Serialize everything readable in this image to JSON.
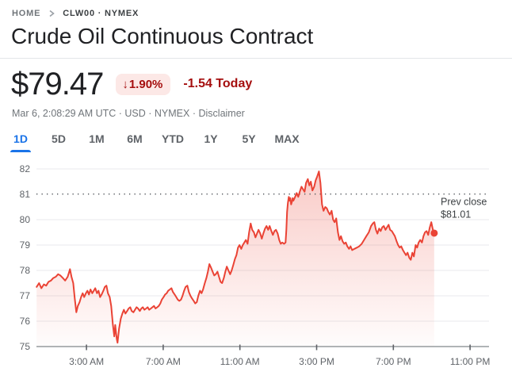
{
  "breadcrumb": {
    "home": "HOME",
    "symbol": "CLW00 · NYMEX"
  },
  "title": "Crude Oil Continuous Contract",
  "quote": {
    "price": "$79.47",
    "change_arrow": "↓",
    "change_percent": "1.90%",
    "change_amount": "-1.54 Today",
    "meta_text": "Mar 6, 2:08:29 AM UTC · USD · NYMEX ·",
    "disclaimer": "Disclaimer"
  },
  "tabs": [
    {
      "label": "1D",
      "active": true
    },
    {
      "label": "5D",
      "active": false
    },
    {
      "label": "1M",
      "active": false
    },
    {
      "label": "6M",
      "active": false
    },
    {
      "label": "YTD",
      "active": false
    },
    {
      "label": "1Y",
      "active": false
    },
    {
      "label": "5Y",
      "active": false
    },
    {
      "label": "MAX",
      "active": false
    }
  ],
  "colors": {
    "series_red": "#ea4335",
    "down_text_red": "#a50e0e",
    "badge_bg": "#fce8e6",
    "tab_active_blue": "#1a73e8",
    "axis_text": "#5f6368",
    "grid_line": "#e8eaed",
    "axis_line": "#80868b"
  },
  "chart_data": {
    "type": "area",
    "title": "Crude Oil Continuous Contract intraday price",
    "xlabel": "",
    "ylabel": "",
    "x_unit": "hour_of_day",
    "xlim": [
      0,
      24
    ],
    "ylim": [
      75,
      82
    ],
    "grid": true,
    "y_ticks": [
      82,
      81,
      80,
      79,
      78,
      77,
      76,
      75
    ],
    "x_ticks": [
      {
        "h": 3,
        "label": "3:00 AM"
      },
      {
        "h": 7,
        "label": "7:00 AM"
      },
      {
        "h": 11,
        "label": "11:00 AM"
      },
      {
        "h": 15,
        "label": "3:00 PM"
      },
      {
        "h": 19,
        "label": "7:00 PM"
      },
      {
        "h": 23,
        "label": "11:00 PM"
      }
    ],
    "prev_close": {
      "value": 81.01,
      "label_line1": "Prev close",
      "label_line2": "$81.01"
    },
    "last_point": {
      "h": 21.13,
      "price": 79.47
    },
    "series": [
      {
        "name": "CLW00",
        "color": "#ea4335",
        "points": [
          [
            0.4,
            77.35
          ],
          [
            0.53,
            77.5
          ],
          [
            0.65,
            77.3
          ],
          [
            0.78,
            77.45
          ],
          [
            0.9,
            77.4
          ],
          [
            1.02,
            77.55
          ],
          [
            1.15,
            77.6
          ],
          [
            1.27,
            77.7
          ],
          [
            1.4,
            77.75
          ],
          [
            1.52,
            77.85
          ],
          [
            1.64,
            77.8
          ],
          [
            1.77,
            77.7
          ],
          [
            1.89,
            77.6
          ],
          [
            2.02,
            77.75
          ],
          [
            2.14,
            78.05
          ],
          [
            2.22,
            77.75
          ],
          [
            2.31,
            77.5
          ],
          [
            2.39,
            76.9
          ],
          [
            2.47,
            76.35
          ],
          [
            2.55,
            76.6
          ],
          [
            2.64,
            76.75
          ],
          [
            2.72,
            76.95
          ],
          [
            2.8,
            77.1
          ],
          [
            2.88,
            76.95
          ],
          [
            2.97,
            77.1
          ],
          [
            3.05,
            77.2
          ],
          [
            3.13,
            77.05
          ],
          [
            3.21,
            77.25
          ],
          [
            3.3,
            77.1
          ],
          [
            3.38,
            77.2
          ],
          [
            3.46,
            77.3
          ],
          [
            3.55,
            77.1
          ],
          [
            3.63,
            77.2
          ],
          [
            3.71,
            76.95
          ],
          [
            3.79,
            77.05
          ],
          [
            3.88,
            77.2
          ],
          [
            3.96,
            77.35
          ],
          [
            4.04,
            77.4
          ],
          [
            4.12,
            77.1
          ],
          [
            4.21,
            76.95
          ],
          [
            4.29,
            76.6
          ],
          [
            4.37,
            75.9
          ],
          [
            4.45,
            75.4
          ],
          [
            4.5,
            75.85
          ],
          [
            4.54,
            75.55
          ],
          [
            4.58,
            75.3
          ],
          [
            4.62,
            75.15
          ],
          [
            4.7,
            75.7
          ],
          [
            4.79,
            76.1
          ],
          [
            4.87,
            76.3
          ],
          [
            4.95,
            76.45
          ],
          [
            5.03,
            76.3
          ],
          [
            5.12,
            76.4
          ],
          [
            5.2,
            76.5
          ],
          [
            5.28,
            76.55
          ],
          [
            5.36,
            76.4
          ],
          [
            5.45,
            76.35
          ],
          [
            5.53,
            76.45
          ],
          [
            5.61,
            76.55
          ],
          [
            5.69,
            76.5
          ],
          [
            5.78,
            76.4
          ],
          [
            5.86,
            76.5
          ],
          [
            5.94,
            76.55
          ],
          [
            6.02,
            76.45
          ],
          [
            6.11,
            76.5
          ],
          [
            6.19,
            76.55
          ],
          [
            6.27,
            76.45
          ],
          [
            6.36,
            76.5
          ],
          [
            6.44,
            76.55
          ],
          [
            6.52,
            76.6
          ],
          [
            6.6,
            76.5
          ],
          [
            6.69,
            76.55
          ],
          [
            6.77,
            76.6
          ],
          [
            6.85,
            76.7
          ],
          [
            6.93,
            76.85
          ],
          [
            7.02,
            76.95
          ],
          [
            7.1,
            77.05
          ],
          [
            7.18,
            77.1
          ],
          [
            7.26,
            77.2
          ],
          [
            7.35,
            77.25
          ],
          [
            7.43,
            77.3
          ],
          [
            7.51,
            77.15
          ],
          [
            7.6,
            77.05
          ],
          [
            7.68,
            76.95
          ],
          [
            7.76,
            76.85
          ],
          [
            7.84,
            76.8
          ],
          [
            7.93,
            76.85
          ],
          [
            8.01,
            77.0
          ],
          [
            8.09,
            77.2
          ],
          [
            8.17,
            77.35
          ],
          [
            8.26,
            77.4
          ],
          [
            8.34,
            77.15
          ],
          [
            8.42,
            77.0
          ],
          [
            8.5,
            76.9
          ],
          [
            8.59,
            76.8
          ],
          [
            8.67,
            76.7
          ],
          [
            8.75,
            76.75
          ],
          [
            8.83,
            77.0
          ],
          [
            8.92,
            77.2
          ],
          [
            9.0,
            77.1
          ],
          [
            9.08,
            77.25
          ],
          [
            9.17,
            77.5
          ],
          [
            9.25,
            77.7
          ],
          [
            9.33,
            77.95
          ],
          [
            9.41,
            78.25
          ],
          [
            9.5,
            78.1
          ],
          [
            9.58,
            77.95
          ],
          [
            9.66,
            77.8
          ],
          [
            9.74,
            77.85
          ],
          [
            9.83,
            77.95
          ],
          [
            9.91,
            77.75
          ],
          [
            9.99,
            77.55
          ],
          [
            10.07,
            77.5
          ],
          [
            10.16,
            77.7
          ],
          [
            10.24,
            77.95
          ],
          [
            10.32,
            78.15
          ],
          [
            10.4,
            78.0
          ],
          [
            10.49,
            77.85
          ],
          [
            10.57,
            78.0
          ],
          [
            10.65,
            78.2
          ],
          [
            10.74,
            78.45
          ],
          [
            10.82,
            78.6
          ],
          [
            10.9,
            78.9
          ],
          [
            10.98,
            79.0
          ],
          [
            11.07,
            78.85
          ],
          [
            11.15,
            79.0
          ],
          [
            11.23,
            79.1
          ],
          [
            11.31,
            79.2
          ],
          [
            11.4,
            79.05
          ],
          [
            11.48,
            79.5
          ],
          [
            11.56,
            79.85
          ],
          [
            11.64,
            79.6
          ],
          [
            11.73,
            79.5
          ],
          [
            11.81,
            79.3
          ],
          [
            11.89,
            79.45
          ],
          [
            11.97,
            79.6
          ],
          [
            12.06,
            79.45
          ],
          [
            12.14,
            79.25
          ],
          [
            12.22,
            79.45
          ],
          [
            12.31,
            79.65
          ],
          [
            12.39,
            79.75
          ],
          [
            12.47,
            79.6
          ],
          [
            12.55,
            79.75
          ],
          [
            12.64,
            79.55
          ],
          [
            12.72,
            79.4
          ],
          [
            12.8,
            79.55
          ],
          [
            12.88,
            79.6
          ],
          [
            12.97,
            79.45
          ],
          [
            13.05,
            79.2
          ],
          [
            13.13,
            79.05
          ],
          [
            13.21,
            79.1
          ],
          [
            13.3,
            79.05
          ],
          [
            13.38,
            79.1
          ],
          [
            13.42,
            79.6
          ],
          [
            13.46,
            80.3
          ],
          [
            13.5,
            80.65
          ],
          [
            13.55,
            80.9
          ],
          [
            13.59,
            80.75
          ],
          [
            13.63,
            80.85
          ],
          [
            13.67,
            80.6
          ],
          [
            13.71,
            80.7
          ],
          [
            13.75,
            80.85
          ],
          [
            13.79,
            80.75
          ],
          [
            13.88,
            80.9
          ],
          [
            13.96,
            81.05
          ],
          [
            14.04,
            80.9
          ],
          [
            14.12,
            81.1
          ],
          [
            14.21,
            81.3
          ],
          [
            14.29,
            81.2
          ],
          [
            14.37,
            81.1
          ],
          [
            14.45,
            81.45
          ],
          [
            14.54,
            81.6
          ],
          [
            14.62,
            81.35
          ],
          [
            14.7,
            81.5
          ],
          [
            14.78,
            81.15
          ],
          [
            14.87,
            81.3
          ],
          [
            14.95,
            81.55
          ],
          [
            15.03,
            81.7
          ],
          [
            15.12,
            81.9
          ],
          [
            15.2,
            81.45
          ],
          [
            15.28,
            80.6
          ],
          [
            15.36,
            80.35
          ],
          [
            15.45,
            80.5
          ],
          [
            15.53,
            80.45
          ],
          [
            15.61,
            80.3
          ],
          [
            15.69,
            80.2
          ],
          [
            15.78,
            80.35
          ],
          [
            15.86,
            80.0
          ],
          [
            15.94,
            79.9
          ],
          [
            16.02,
            80.05
          ],
          [
            16.11,
            79.5
          ],
          [
            16.19,
            79.2
          ],
          [
            16.27,
            79.35
          ],
          [
            16.35,
            79.15
          ],
          [
            16.44,
            79.05
          ],
          [
            16.52,
            79.1
          ],
          [
            16.6,
            78.95
          ],
          [
            16.69,
            78.85
          ],
          [
            16.77,
            78.95
          ],
          [
            16.85,
            78.8
          ],
          [
            16.97,
            78.85
          ],
          [
            17.1,
            78.9
          ],
          [
            17.22,
            78.95
          ],
          [
            17.35,
            79.05
          ],
          [
            17.47,
            79.2
          ],
          [
            17.59,
            79.35
          ],
          [
            17.72,
            79.5
          ],
          [
            17.84,
            79.75
          ],
          [
            17.93,
            79.85
          ],
          [
            18.01,
            79.9
          ],
          [
            18.09,
            79.6
          ],
          [
            18.17,
            79.45
          ],
          [
            18.26,
            79.65
          ],
          [
            18.34,
            79.55
          ],
          [
            18.42,
            79.7
          ],
          [
            18.5,
            79.75
          ],
          [
            18.59,
            79.6
          ],
          [
            18.67,
            79.7
          ],
          [
            18.75,
            79.8
          ],
          [
            18.83,
            79.6
          ],
          [
            18.92,
            79.55
          ],
          [
            19.0,
            79.45
          ],
          [
            19.08,
            79.35
          ],
          [
            19.17,
            79.15
          ],
          [
            19.25,
            79.0
          ],
          [
            19.33,
            78.9
          ],
          [
            19.41,
            78.95
          ],
          [
            19.5,
            78.8
          ],
          [
            19.58,
            78.7
          ],
          [
            19.66,
            78.6
          ],
          [
            19.74,
            78.7
          ],
          [
            19.83,
            78.5
          ],
          [
            19.91,
            78.42
          ],
          [
            19.99,
            78.7
          ],
          [
            20.07,
            78.55
          ],
          [
            20.16,
            79.0
          ],
          [
            20.24,
            78.9
          ],
          [
            20.32,
            79.1
          ],
          [
            20.4,
            79.2
          ],
          [
            20.49,
            79.1
          ],
          [
            20.57,
            79.35
          ],
          [
            20.65,
            79.5
          ],
          [
            20.73,
            79.55
          ],
          [
            20.82,
            79.4
          ],
          [
            20.9,
            79.7
          ],
          [
            20.98,
            79.9
          ],
          [
            21.06,
            79.6
          ],
          [
            21.13,
            79.47
          ]
        ]
      }
    ]
  }
}
